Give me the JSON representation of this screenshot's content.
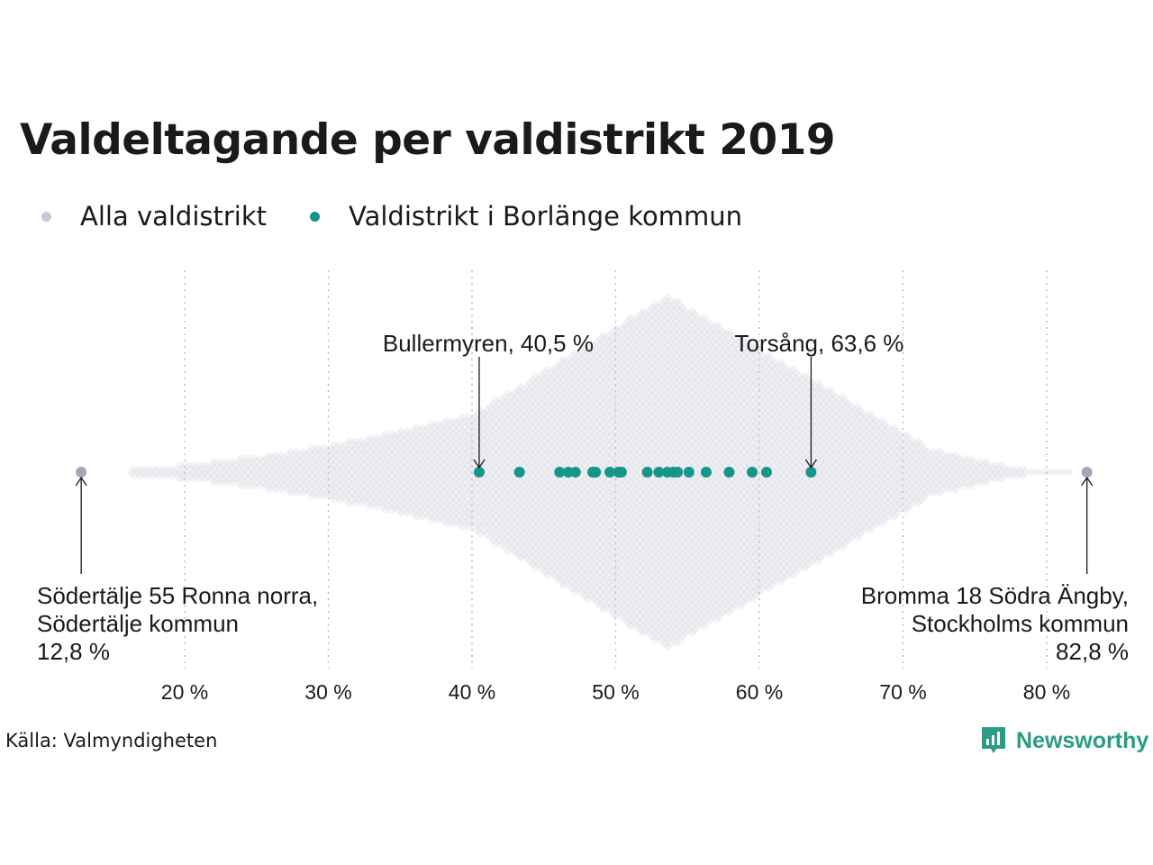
{
  "title": "Valdeltagande per valdistrikt 2019",
  "legend": [
    {
      "label": "Alla valdistrikt",
      "color": "#c9c8d6"
    },
    {
      "label": "Valdistrikt i Borlänge kommun",
      "color": "#14968a"
    }
  ],
  "source": "Källa: Valmyndigheten",
  "logo": {
    "text": "Newsworthy",
    "icon": "newsworthy-logo-icon",
    "color": "#2a9d85"
  },
  "chart_data": {
    "type": "scatter",
    "title": "Valdeltagande per valdistrikt 2019",
    "xlabel": "",
    "ylabel": "",
    "xlim": [
      10,
      85
    ],
    "x_ticks": [
      20,
      30,
      40,
      50,
      60,
      70,
      80
    ],
    "x_tick_labels": [
      "20 %",
      "30 %",
      "40 %",
      "50 %",
      "60 %",
      "70 %",
      "80 %"
    ],
    "grid": "vertical dotted",
    "legend_position": "top-left",
    "series": [
      {
        "name": "Alla valdistrikt",
        "color": "#c9c8d6",
        "distribution": {
          "min": 12.8,
          "max": 82.8,
          "mode": 53.6
        }
      },
      {
        "name": "Valdistrikt i Borlänge kommun",
        "color": "#14968a",
        "values": [
          40.5,
          43.3,
          46.1,
          46.7,
          47.2,
          48.4,
          48.6,
          49.6,
          50.2,
          50.4,
          52.2,
          53.0,
          53.6,
          54.0,
          54.3,
          55.1,
          56.3,
          57.9,
          59.5,
          60.5,
          63.6
        ]
      }
    ],
    "annotations": [
      {
        "label": "Bullermyren, 40,5 %",
        "value": 40.5
      },
      {
        "label": "Torsång, 63,6 %",
        "value": 63.6
      },
      {
        "lines": [
          "Södertälje 55 Ronna norra,",
          "Södertälje kommun",
          "12,8 %"
        ],
        "value": 12.8
      },
      {
        "lines": [
          "Bromma 18 Södra Ängby,",
          "Stockholms kommun",
          "82,8 %"
        ],
        "value": 82.8
      }
    ]
  }
}
